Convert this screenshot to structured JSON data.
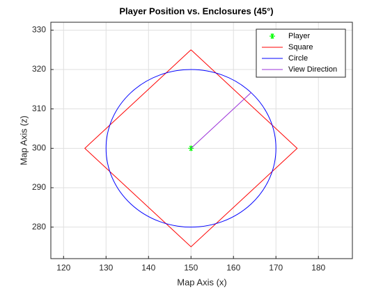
{
  "chart_data": {
    "type": "line",
    "title": "Player Position vs. Enclosures (45°)",
    "xlabel": "Map Axis (x)",
    "ylabel": "Map Axis (z)",
    "xlim": [
      117,
      188
    ],
    "ylim": [
      272,
      332
    ],
    "xticks": [
      120,
      130,
      140,
      150,
      160,
      170,
      180
    ],
    "yticks": [
      280,
      290,
      300,
      310,
      320,
      330
    ],
    "grid": true,
    "legend": "northeast",
    "series": [
      {
        "name": "Player",
        "color": "#00ff00",
        "marker": "*",
        "x": [
          150
        ],
        "y": [
          300
        ]
      },
      {
        "name": "Square",
        "color": "#ff0000",
        "x": [
          150,
          175,
          150,
          125,
          150
        ],
        "y": [
          325,
          300,
          275,
          300,
          325
        ]
      },
      {
        "name": "Circle",
        "color": "#0000ff",
        "shape": "circle",
        "center": [
          150,
          300
        ],
        "radius": 20
      },
      {
        "name": "View Direction",
        "color": "#9b30d9",
        "x": [
          150,
          164.14
        ],
        "y": [
          300,
          314.14
        ]
      }
    ]
  }
}
